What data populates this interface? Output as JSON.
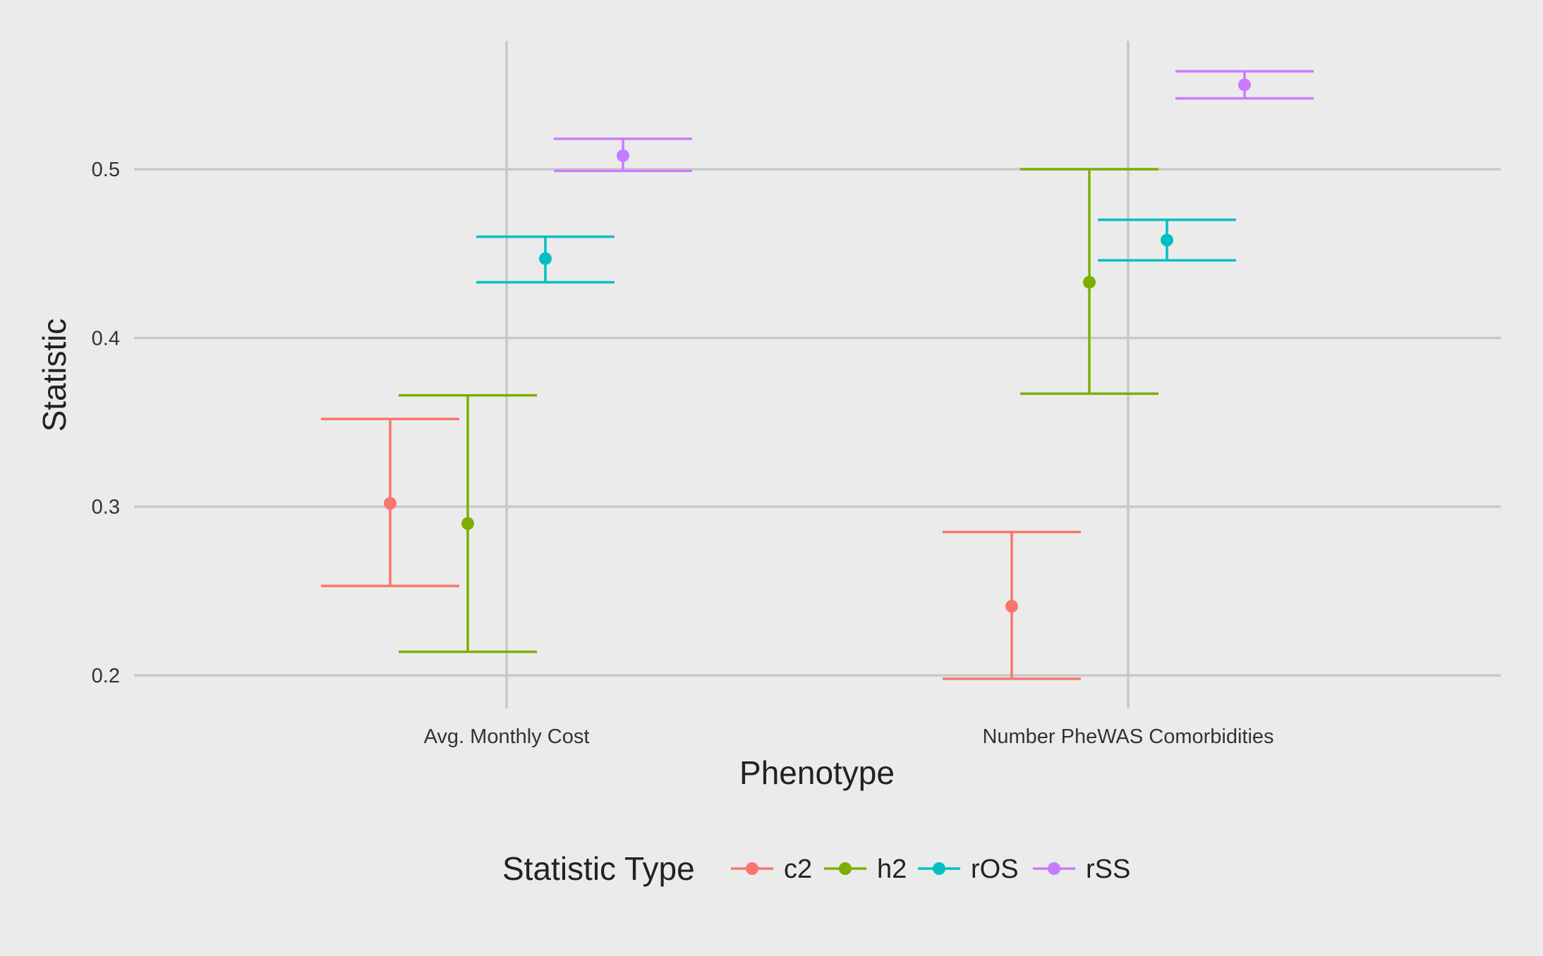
{
  "chart_data": {
    "type": "errorbar",
    "xlabel": "Phenotype",
    "ylabel": "Statistic",
    "categories": [
      "Avg. Monthly Cost",
      "Number PheWAS Comorbidities"
    ],
    "ylim": [
      0.18,
      0.575
    ],
    "yticks": [
      0.2,
      0.3,
      0.4,
      0.5
    ],
    "ytick_labels": [
      "0.2",
      "0.3",
      "0.4",
      "0.5"
    ],
    "grid": true,
    "legend": {
      "title": "Statistic Type",
      "position": "bottom"
    },
    "series": [
      {
        "name": "c2",
        "color": "#f8766d",
        "values": [
          0.302,
          0.241
        ],
        "lower": [
          0.253,
          0.198
        ],
        "upper": [
          0.352,
          0.285
        ]
      },
      {
        "name": "h2",
        "color": "#7cae00",
        "values": [
          0.29,
          0.433
        ],
        "lower": [
          0.214,
          0.367
        ],
        "upper": [
          0.366,
          0.5
        ]
      },
      {
        "name": "rOS",
        "color": "#00bfc4",
        "values": [
          0.447,
          0.458
        ],
        "lower": [
          0.433,
          0.446
        ],
        "upper": [
          0.46,
          0.47
        ]
      },
      {
        "name": "rSS",
        "color": "#c77cff",
        "values": [
          0.508,
          0.55
        ],
        "lower": [
          0.499,
          0.542
        ],
        "upper": [
          0.518,
          0.558
        ]
      }
    ]
  }
}
